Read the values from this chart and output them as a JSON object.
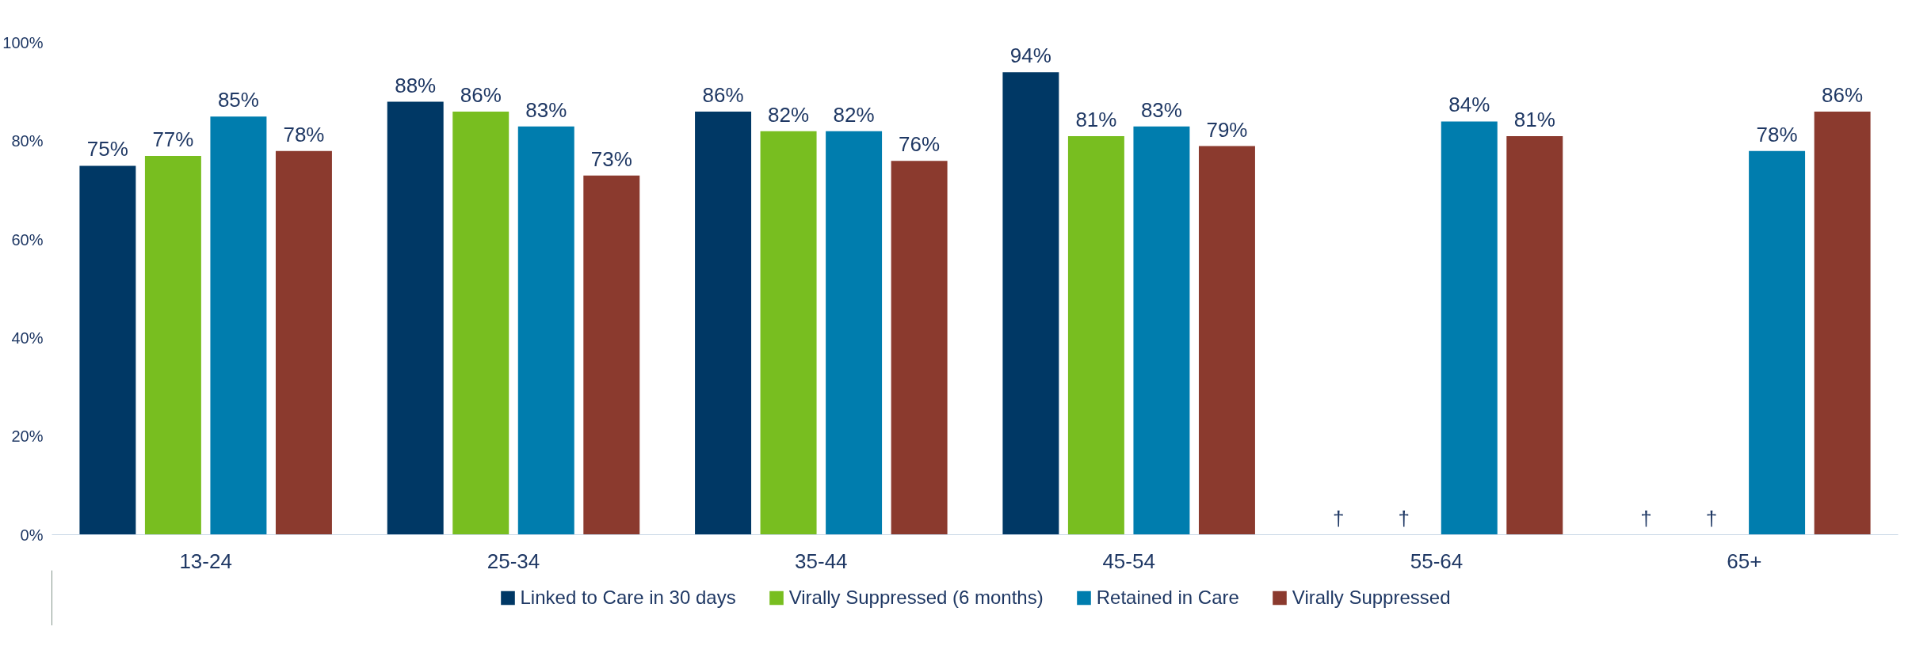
{
  "chart_data": {
    "type": "bar",
    "categories": [
      "13-24",
      "25-34",
      "35-44",
      "45-54",
      "55-64",
      "65+"
    ],
    "series": [
      {
        "name": "Linked to Care in 30 days",
        "color": "#003865",
        "values": [
          75,
          88,
          86,
          94,
          null,
          null
        ],
        "value_labels": [
          "75%",
          "88%",
          "86%",
          "94%",
          "†",
          "†"
        ]
      },
      {
        "name": "Virally Suppressed (6 months)",
        "color": "#78be20",
        "values": [
          77,
          86,
          82,
          81,
          null,
          null
        ],
        "value_labels": [
          "77%",
          "86%",
          "82%",
          "81%",
          "†",
          "†"
        ]
      },
      {
        "name": "Retained in Care",
        "color": "#007dae",
        "values": [
          85,
          83,
          82,
          83,
          84,
          78
        ],
        "value_labels": [
          "85%",
          "83%",
          "82%",
          "83%",
          "84%",
          "78%"
        ]
      },
      {
        "name": "Virally Suppressed",
        "color": "#8b3a2e",
        "values": [
          78,
          73,
          76,
          79,
          81,
          86
        ],
        "value_labels": [
          "78%",
          "73%",
          "76%",
          "79%",
          "81%",
          "86%"
        ]
      }
    ],
    "ylim": [
      0,
      100
    ],
    "yticks": [
      {
        "value": 0,
        "label": "0%"
      },
      {
        "value": 20,
        "label": "20%"
      },
      {
        "value": 40,
        "label": "40%"
      },
      {
        "value": 60,
        "label": "60%"
      },
      {
        "value": 80,
        "label": "80%"
      },
      {
        "value": 100,
        "label": "100%"
      }
    ],
    "grid": false,
    "legend": "bottom"
  }
}
